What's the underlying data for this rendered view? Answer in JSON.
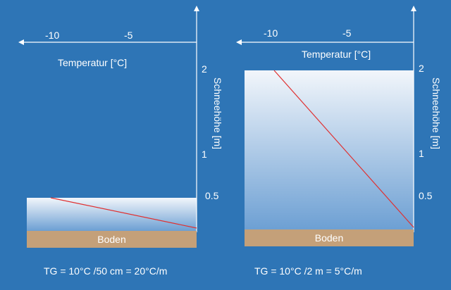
{
  "panels": [
    {
      "temperature_axis_label": "Temperatur [°C]",
      "snow_depth_axis_label": "Schneehöhe [m]",
      "temperature_ticks": [
        "-10",
        "-5"
      ],
      "depth_ticks": [
        "2",
        "1",
        "0.5"
      ],
      "snow_depth_m": 0.5,
      "ground_label": "Boden",
      "gradient_formula": "TG = 10°C /50 cm = 20°C/m"
    },
    {
      "temperature_axis_label": "Temperatur [°C]",
      "snow_depth_axis_label": "Schneehöhe [m]",
      "temperature_ticks": [
        "-10",
        "-5"
      ],
      "depth_ticks": [
        "2",
        "1",
        "0.5"
      ],
      "snow_depth_m": 2,
      "ground_label": "Boden",
      "gradient_formula": "TG = 10°C /2 m = 5°C/m"
    }
  ],
  "colors": {
    "background": "#2e75b6",
    "ground": "#c4a079",
    "temperature_line": "#e03030",
    "snow_top": "#f2f6fb",
    "snow_bottom": "#6c9fd3"
  }
}
